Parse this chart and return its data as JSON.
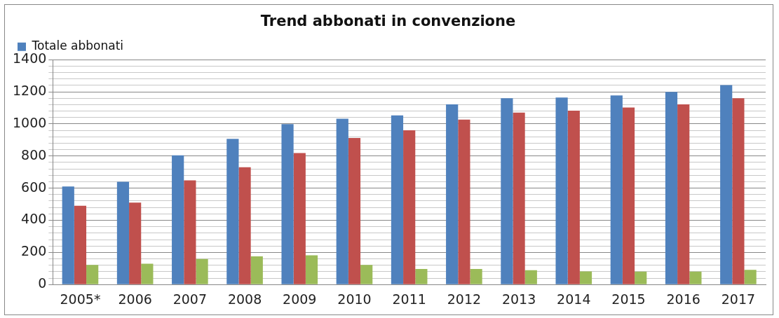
{
  "chart_data": {
    "type": "bar",
    "title": "Trend abbonati in convenzione",
    "categories": [
      "2005*",
      "2006",
      "2007",
      "2008",
      "2009",
      "2010",
      "2011",
      "2012",
      "2013",
      "2014",
      "2015",
      "2016",
      "2017"
    ],
    "series": [
      {
        "name": "Totale abbonati",
        "color": "#4f81bd",
        "values": [
          610,
          640,
          805,
          907,
          998,
          1032,
          1053,
          1122,
          1160,
          1164,
          1177,
          1199,
          1242
        ]
      },
      {
        "color": "#c0504d",
        "values": [
          490,
          510,
          648,
          730,
          819,
          912,
          960,
          1027,
          1071,
          1082,
          1102,
          1122,
          1160
        ]
      },
      {
        "color": "#9bbb59",
        "values": [
          122,
          130,
          159,
          175,
          182,
          122,
          97,
          97,
          89,
          82,
          80,
          80,
          91
        ]
      }
    ],
    "ylim": [
      0,
      1400
    ],
    "yticks": [
      0,
      {
        "value": 40,
        "label": null
      },
      {
        "value": 80,
        "label": null
      },
      {
        "value": 120,
        "label": null
      },
      {
        "value": 160,
        "label": null
      },
      200,
      {
        "value": 240,
        "label": null
      },
      {
        "value": 280,
        "label": null
      },
      {
        "value": 320,
        "label": null
      },
      {
        "value": 360,
        "label": null
      },
      400,
      {
        "value": 440,
        "label": null
      },
      {
        "value": 480,
        "label": null
      },
      {
        "value": 520,
        "label": null
      },
      {
        "value": 560,
        "label": null
      },
      600,
      {
        "value": 640,
        "label": null
      },
      {
        "value": 680,
        "label": null
      },
      {
        "value": 720,
        "label": null
      },
      {
        "value": 760,
        "label": null
      },
      800,
      {
        "value": 840,
        "label": null
      },
      {
        "value": 880,
        "label": null
      },
      {
        "value": 920,
        "label": null
      },
      {
        "value": 960,
        "label": null
      },
      1000,
      {
        "value": 1040,
        "label": null
      },
      {
        "value": 1080,
        "label": null
      },
      {
        "value": 1120,
        "label": null
      },
      {
        "value": 1160,
        "label": null
      },
      1200,
      {
        "value": 1240,
        "label": null
      },
      {
        "value": 1280,
        "label": null
      },
      {
        "value": 1320,
        "label": null
      },
      {
        "value": 1360,
        "label": null
      },
      1400
    ],
    "grid": "y",
    "legend": "top left"
  }
}
